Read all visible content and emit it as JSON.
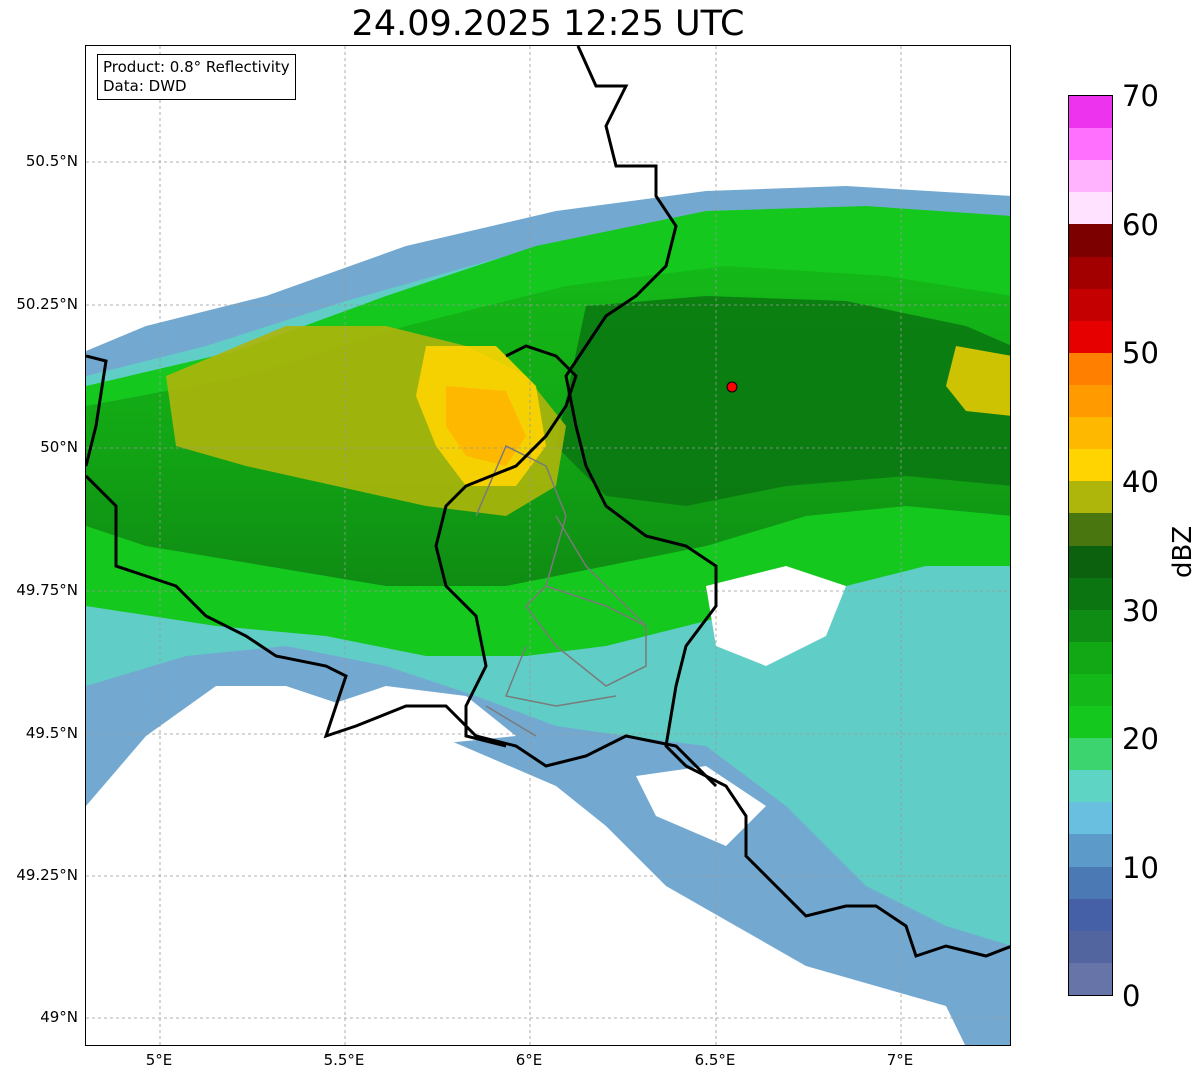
{
  "title": "24.09.2025 12:25 UTC",
  "info": {
    "line1": "Product: 0.8° Reflectivity",
    "line2": "Data: DWD"
  },
  "lat_labels": [
    "50.5°N",
    "50.25°N",
    "50°N",
    "49.75°N",
    "49.5°N",
    "49.25°N",
    "49°N"
  ],
  "lon_labels": [
    "5°E",
    "5.5°E",
    "6°E",
    "6.5°E",
    "7°E"
  ],
  "colorbar": {
    "unit": "dBZ",
    "labels": [
      "70",
      "60",
      "50",
      "40",
      "30",
      "20",
      "10",
      "0"
    ],
    "colors": [
      "#6674a8",
      "#53659e",
      "#4560a7",
      "#4a79b4",
      "#5b9ac9",
      "#68bfdf",
      "#5dd4c4",
      "#3bd46e",
      "#14c81e",
      "#14b818",
      "#12a815",
      "#0f8c13",
      "#0b7611",
      "#0b610d",
      "#4a7610",
      "#aeb50b",
      "#ffd400",
      "#ffb800",
      "#ff9a00",
      "#ff7f00",
      "#e60000",
      "#c40000",
      "#a20000",
      "#7d0000",
      "#ffe2ff",
      "#ffb3ff",
      "#ff70ff",
      "#ee33ee"
    ]
  },
  "radar_marker": {
    "lat": 50.11,
    "lon": 6.55,
    "color": "#ff0000"
  },
  "map_extent": {
    "lon": [
      4.8,
      7.3
    ],
    "lat": [
      48.95,
      50.7
    ]
  }
}
